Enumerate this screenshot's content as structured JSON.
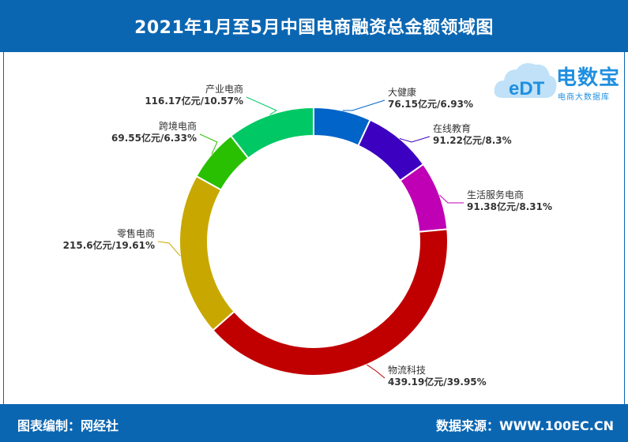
{
  "header": {
    "title": "2021年1月至5月中国电商融资总金额领域图"
  },
  "footer": {
    "left": "图表编制：网经社",
    "right": "数据来源：WWW.100EC.CN"
  },
  "logo": {
    "name": "电数宝",
    "sub": "电商大数据库",
    "mark": "eDT"
  },
  "colors": {
    "brand": "#0b66b2",
    "slices": [
      "#0064c8",
      "#3c00c0",
      "#c000b4",
      "#c00000",
      "#c8a800",
      "#28c000",
      "#00c864"
    ]
  },
  "chart_data": {
    "type": "pie",
    "donut": true,
    "start": "12 o'clock, clockwise",
    "title": "2021年1月至5月中国电商融资总金额领域图",
    "slices": [
      {
        "name": "大健康",
        "value_label": "76.15亿元/6.93%",
        "value": 76.15,
        "percent": 6.93
      },
      {
        "name": "在线教育",
        "value_label": "91.22亿元/8.3%",
        "value": 91.22,
        "percent": 8.3
      },
      {
        "name": "生活服务电商",
        "value_label": "91.38亿元/8.31%",
        "value": 91.38,
        "percent": 8.31
      },
      {
        "name": "物流科技",
        "value_label": "439.19亿元/39.95%",
        "value": 439.19,
        "percent": 39.95
      },
      {
        "name": "零售电商",
        "value_label": "215.6亿元/19.61%",
        "value": 215.6,
        "percent": 19.61
      },
      {
        "name": "跨境电商",
        "value_label": "69.55亿元/6.33%",
        "value": 69.55,
        "percent": 6.33
      },
      {
        "name": "产业电商",
        "value_label": "116.17亿元/10.57%",
        "value": 116.17,
        "percent": 10.57
      }
    ]
  }
}
